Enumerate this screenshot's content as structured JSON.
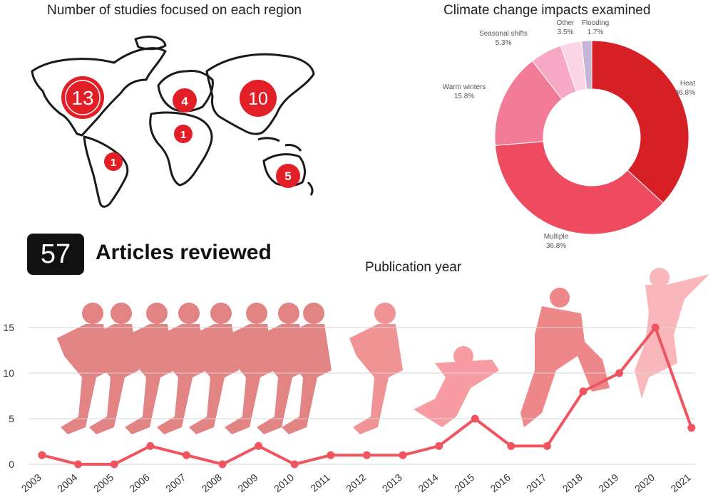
{
  "map_panel": {
    "title": "Number of studies focused on each region",
    "regions": [
      {
        "name": "North America",
        "count": "13"
      },
      {
        "name": "Europe",
        "count": "4"
      },
      {
        "name": "Asia",
        "count": "10"
      },
      {
        "name": "Africa",
        "count": "1"
      },
      {
        "name": "South America",
        "count": "1"
      },
      {
        "name": "Australia",
        "count": "5"
      }
    ]
  },
  "summary": {
    "count": "57",
    "label": "Articles reviewed"
  },
  "chart_data": [
    {
      "type": "pie",
      "title": "Climate change impacts examined",
      "donut": true,
      "slices": [
        {
          "label": "Heat",
          "value": 36.8,
          "pct_label": "36.8%",
          "color": "#d71f26"
        },
        {
          "label": "Multiple",
          "value": 36.8,
          "pct_label": "36.8%",
          "color": "#ee4a60"
        },
        {
          "label": "Warm winters",
          "value": 15.8,
          "pct_label": "15.8%",
          "color": "#f27c98"
        },
        {
          "label": "Seasonal shifts",
          "value": 5.3,
          "pct_label": "5.3%",
          "color": "#f7a8c4"
        },
        {
          "label": "Other",
          "value": 3.5,
          "pct_label": "3.5%",
          "color": "#fbd4e6"
        },
        {
          "label": "Flooding",
          "value": 1.7,
          "pct_label": "1.7%",
          "color": "#c3b6d9"
        }
      ]
    },
    {
      "type": "line",
      "title": "Publication year",
      "categories": [
        "2003",
        "2004",
        "2005",
        "2006",
        "2007",
        "2008",
        "2009",
        "2010",
        "2011",
        "2012",
        "2013",
        "2014",
        "2015",
        "2016",
        "2017",
        "2018",
        "2019",
        "2020",
        "2021"
      ],
      "series": [
        {
          "values": [
            1,
            0,
            0,
            2,
            1,
            0,
            2,
            0,
            1,
            1,
            1,
            2,
            5,
            2,
            2,
            8,
            10,
            15,
            4
          ]
        }
      ],
      "ylim": [
        0,
        17
      ],
      "yticks": [
        "0",
        "5",
        "10",
        "15"
      ],
      "grid": true,
      "color": "#f0555f"
    }
  ]
}
